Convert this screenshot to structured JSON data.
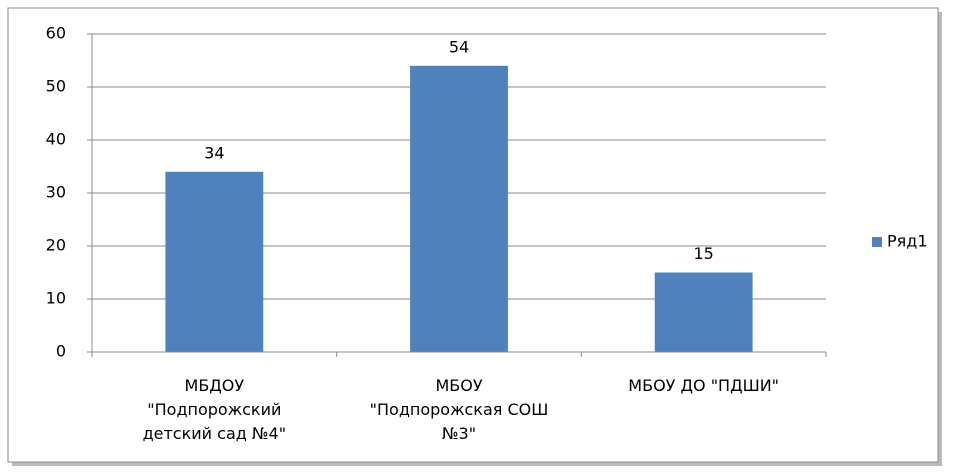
{
  "chart_data": {
    "type": "bar",
    "categories": [
      "МБДОУ \"Подпорожский детский сад №4\"",
      "МБОУ \"Подпорожская СОШ №3\"",
      "МБОУ ДО \"ПДШИ\""
    ],
    "series": [
      {
        "name": "Ряд1",
        "color": "#4f81bd",
        "values": [
          34,
          54,
          15
        ]
      }
    ],
    "ylim": [
      0,
      60
    ],
    "yticks": [
      0,
      10,
      20,
      30,
      40,
      50,
      60
    ],
    "grid": true,
    "legend": "right"
  }
}
